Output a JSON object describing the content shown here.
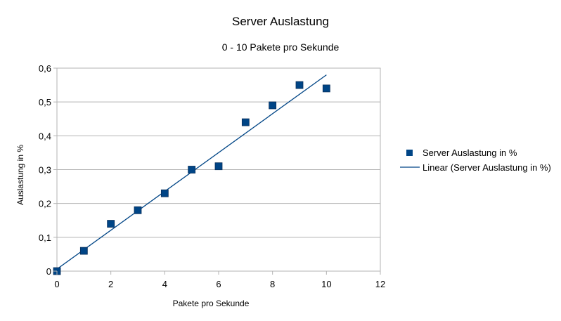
{
  "chart_data": {
    "type": "scatter",
    "title": "Server Auslastung",
    "subtitle": "0 - 10 Pakete pro Sekunde",
    "xlabel": "Pakete pro Sekunde",
    "ylabel": "Auslastung in %",
    "xlim": [
      0,
      12
    ],
    "ylim": [
      0,
      0.6
    ],
    "x_ticks": [
      0,
      2,
      4,
      6,
      8,
      10,
      12
    ],
    "x_tick_labels": [
      "0",
      "2",
      "4",
      "6",
      "8",
      "10",
      "12"
    ],
    "y_ticks": [
      0,
      0.1,
      0.2,
      0.3,
      0.4,
      0.5,
      0.6
    ],
    "y_tick_labels": [
      "0",
      "0,1",
      "0,2",
      "0,3",
      "0,4",
      "0,5",
      "0,6"
    ],
    "grid": "horizontal",
    "legend_position": "right",
    "series": [
      {
        "name": "Server Auslastung in %",
        "x": [
          0,
          1,
          2,
          3,
          4,
          5,
          6,
          7,
          8,
          9,
          10
        ],
        "y": [
          0,
          0.06,
          0.14,
          0.18,
          0.23,
          0.3,
          0.31,
          0.44,
          0.49,
          0.55,
          0.54
        ],
        "color": "#004586",
        "marker": "square"
      }
    ],
    "trendline": {
      "name": "Linear (Server Auslastung in %)",
      "type": "linear",
      "x_range": [
        0,
        10
      ],
      "y_range": [
        0.006,
        0.58
      ],
      "color": "#004586"
    }
  }
}
